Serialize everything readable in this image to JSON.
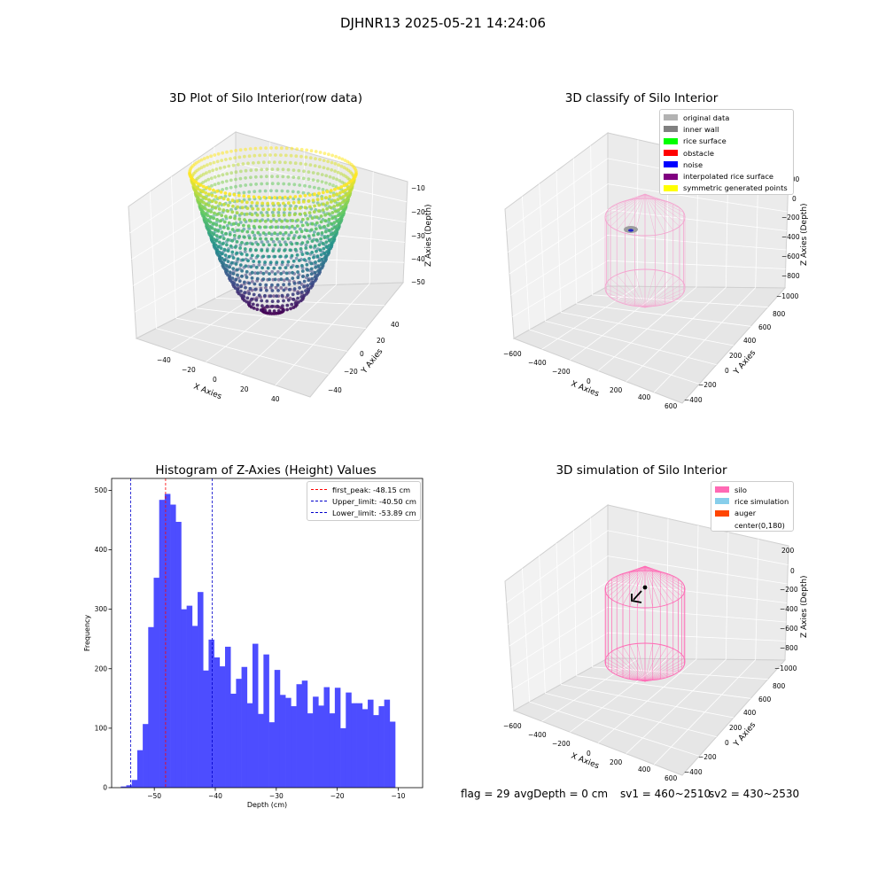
{
  "suptitle": "DJHNR13 2025-05-21 14:24:06",
  "panels": {
    "tl_title": "3D Plot of Silo Interior(row data)",
    "tr_title": "3D classify of Silo Interior",
    "bl_title": "Histogram of Z-Axies (Height) Values",
    "br_title": "3D simulation of Silo Interior"
  },
  "axes3d_raw": {
    "xlabel": "X Axies",
    "ylabel": "Y Axies",
    "zlabel": "Z Axies (Depth)",
    "xticks": [
      "−40",
      "−20",
      "0",
      "20",
      "40"
    ],
    "yticks": [
      "−40",
      "−20",
      "0",
      "20",
      "40"
    ],
    "zticks": [
      "−10",
      "−20",
      "−30",
      "−40",
      "−50"
    ]
  },
  "axes3d_big": {
    "xlabel": "X Axies",
    "ylabel": "Y Axies",
    "zlabel": "Z Axies (Depth)",
    "xticks": [
      "−600",
      "−400",
      "−200",
      "0",
      "200",
      "400",
      "600"
    ],
    "yticks": [
      "−400",
      "−200",
      "0",
      "200",
      "400",
      "600",
      "800"
    ],
    "zticks_tr": [
      "200",
      "0",
      "−200",
      "−400",
      "−600",
      "−800",
      "−1000"
    ],
    "zticks_br": [
      "200",
      "0",
      "−200",
      "−400",
      "−600",
      "−800",
      "−1000"
    ]
  },
  "legend_classify": [
    {
      "label": "original data",
      "color": "#b3b3b3"
    },
    {
      "label": "inner wall",
      "color": "#808080"
    },
    {
      "label": "rice surface",
      "color": "#00ff00"
    },
    {
      "label": "obstacle",
      "color": "#ff0000"
    },
    {
      "label": "noise",
      "color": "#0000ff"
    },
    {
      "label": "interpolated rice surface",
      "color": "#800080"
    },
    {
      "label": "symmetric generated points",
      "color": "#ffff00"
    }
  ],
  "legend_simulation": [
    {
      "label": "silo",
      "color": "#ff69b4"
    },
    {
      "label": "rice simulation",
      "color": "#87ceeb"
    },
    {
      "label": "auger",
      "color": "#ff4500"
    },
    {
      "label": "center(0,180)",
      "color": "#ffffff"
    }
  ],
  "chart_data": {
    "type": "bar",
    "title": "Histogram of Z-Axies (Height) Values",
    "xlabel": "Depth (cm)",
    "ylabel": "Frequency",
    "xlim": [
      -57,
      -6
    ],
    "ylim": [
      0,
      520
    ],
    "xticks": [
      -50,
      -40,
      -30,
      -20,
      -10
    ],
    "xtick_labels": [
      "−50",
      "−40",
      "−30",
      "−20",
      "−10"
    ],
    "yticks": [
      0,
      100,
      200,
      300,
      400,
      500
    ],
    "bin_start": -55.5,
    "bin_width": 0.9,
    "values": [
      2,
      4,
      13,
      63,
      107,
      270,
      353,
      484,
      494,
      476,
      447,
      300,
      306,
      272,
      329,
      197,
      249,
      219,
      204,
      237,
      158,
      183,
      203,
      142,
      242,
      124,
      224,
      110,
      198,
      156,
      151,
      137,
      174,
      180,
      125,
      153,
      138,
      169,
      125,
      168,
      100,
      160,
      142,
      142,
      132,
      148,
      122,
      137,
      148,
      111
    ],
    "bar_color": "#4d4dff",
    "vlines": [
      {
        "label": "first_peak: -48.15 cm",
        "x": -48.15,
        "color": "#ff0000"
      },
      {
        "label": "Upper_limit: -40.50 cm",
        "x": -40.5,
        "color": "#0000cc"
      },
      {
        "label": "Lower_limit: -53.89 cm",
        "x": -53.89,
        "color": "#0000cc"
      }
    ]
  },
  "footer": {
    "flag": "flag = 29",
    "avg_depth": "avgDepth = 0 cm",
    "sv1": "sv1 = 460~2510",
    "sv2": "sv2 = 430~2530"
  }
}
